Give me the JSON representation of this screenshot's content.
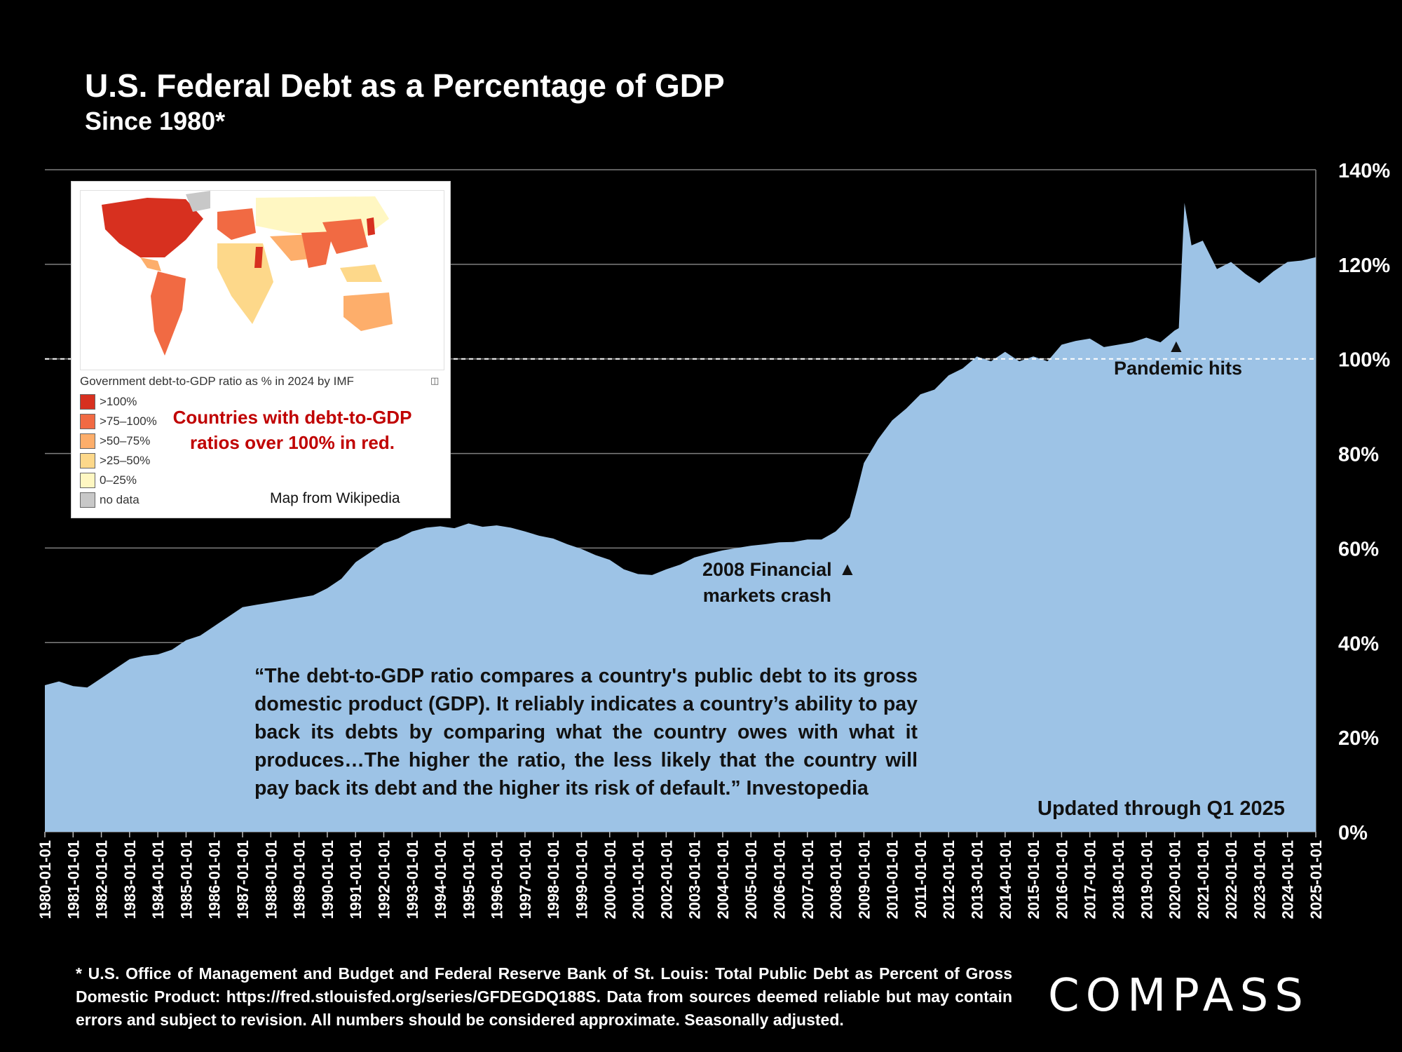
{
  "header": {
    "title": "U.S. Federal Debt as a Percentage of GDP",
    "subtitle": "Since 1980*"
  },
  "inset": {
    "map_caption": "Government debt-to-GDP ratio as % in 2024 by IMF",
    "legend": [
      {
        "label": ">100%",
        "color": "#d7301f"
      },
      {
        "label": ">75–100%",
        "color": "#f16a43"
      },
      {
        "label": ">50–75%",
        "color": "#fdae6b"
      },
      {
        "label": ">25–50%",
        "color": "#fdd88a"
      },
      {
        "label": "0–25%",
        "color": "#fff7c2"
      },
      {
        "label": "no data",
        "color": "#c8c8c8"
      }
    ],
    "note": "Countries with debt-to-GDP ratios over 100% in red.",
    "credit": "Map from Wikipedia"
  },
  "quote": "“The debt-to-GDP ratio compares a country's public debt to its gross domestic product (GDP). It reliably indicates a country’s ability to pay back its debts by comparing what the country owes with what it produces…The higher the ratio, the less likely that the country will pay back its debt and the higher its risk of default.” Investopedia",
  "annotations": {
    "crash_line1": "2008 Financial",
    "crash_line2": "markets crash",
    "pandemic": "Pandemic hits",
    "updated": "Updated through Q1 2025"
  },
  "footnote": "* U.S. Office of Management and Budget and Federal Reserve Bank of St. Louis: Total Public Debt as Percent of Gross Domestic Product: https://fred.stlouisfed.org/series/GFDEGDQ188S. Data from sources deemed reliable but may contain errors and subject to revision. All numbers should be considered approximate. Seasonally adjusted.",
  "brand": {
    "logo": "COMPASS"
  },
  "colors": {
    "fill": "#9dc3e6",
    "background": "#000000",
    "note_red": "#c00000"
  },
  "chart_data": {
    "type": "area",
    "title": "U.S. Federal Debt as a Percentage of GDP",
    "subtitle": "Since 1980*",
    "ylabel": "",
    "xlabel": "",
    "ylim": [
      0,
      140
    ],
    "yticks": [
      "0%",
      "20%",
      "40%",
      "60%",
      "80%",
      "100%",
      "120%",
      "140%"
    ],
    "grid": true,
    "reference_line": {
      "value": 100,
      "style": "dashed"
    },
    "x_labels": [
      "1980-01-01",
      "1981-01-01",
      "1982-01-01",
      "1983-01-01",
      "1984-01-01",
      "1985-01-01",
      "1986-01-01",
      "1987-01-01",
      "1988-01-01",
      "1989-01-01",
      "1990-01-01",
      "1991-01-01",
      "1992-01-01",
      "1993-01-01",
      "1994-01-01",
      "1995-01-01",
      "1996-01-01",
      "1997-01-01",
      "1998-01-01",
      "1999-01-01",
      "2000-01-01",
      "2001-01-01",
      "2002-01-01",
      "2003-01-01",
      "2004-01-01",
      "2005-01-01",
      "2006-01-01",
      "2007-01-01",
      "2008-01-01",
      "2009-01-01",
      "2010-01-01",
      "2011-01-01",
      "2012-01-01",
      "2013-01-01",
      "2014-01-01",
      "2015-01-01",
      "2016-01-01",
      "2017-01-01",
      "2018-01-01",
      "2019-01-01",
      "2020-01-01",
      "2021-01-01",
      "2022-01-01",
      "2023-01-01",
      "2024-01-01",
      "2025-01-01"
    ],
    "series": [
      {
        "name": "Federal debt as % of GDP",
        "points": [
          [
            1980.0,
            31
          ],
          [
            1980.5,
            31.8
          ],
          [
            1981.0,
            30.8
          ],
          [
            1981.5,
            30.5
          ],
          [
            1982.0,
            32.5
          ],
          [
            1982.5,
            34.5
          ],
          [
            1983.0,
            36.5
          ],
          [
            1983.5,
            37.2
          ],
          [
            1984.0,
            37.5
          ],
          [
            1984.5,
            38.5
          ],
          [
            1985.0,
            40.5
          ],
          [
            1985.5,
            41.5
          ],
          [
            1986.0,
            43.5
          ],
          [
            1986.5,
            45.5
          ],
          [
            1987.0,
            47.5
          ],
          [
            1987.5,
            48
          ],
          [
            1988.0,
            48.5
          ],
          [
            1988.5,
            49
          ],
          [
            1989.0,
            49.5
          ],
          [
            1989.5,
            50
          ],
          [
            1990.0,
            51.5
          ],
          [
            1990.5,
            53.5
          ],
          [
            1991.0,
            57
          ],
          [
            1991.5,
            59
          ],
          [
            1992.0,
            61
          ],
          [
            1992.5,
            62
          ],
          [
            1993.0,
            63.5
          ],
          [
            1993.5,
            64.3
          ],
          [
            1994.0,
            64.6
          ],
          [
            1994.5,
            64.2
          ],
          [
            1995.0,
            65.2
          ],
          [
            1995.5,
            64.5
          ],
          [
            1996.0,
            64.8
          ],
          [
            1996.5,
            64.3
          ],
          [
            1997.0,
            63.5
          ],
          [
            1997.5,
            62.6
          ],
          [
            1998.0,
            62
          ],
          [
            1998.5,
            60.8
          ],
          [
            1999.0,
            59.8
          ],
          [
            1999.5,
            58.5
          ],
          [
            2000.0,
            57.5
          ],
          [
            2000.5,
            55.5
          ],
          [
            2001.0,
            54.5
          ],
          [
            2001.5,
            54.3
          ],
          [
            2002.0,
            55.5
          ],
          [
            2002.5,
            56.5
          ],
          [
            2003.0,
            58
          ],
          [
            2003.5,
            58.8
          ],
          [
            2004.0,
            59.5
          ],
          [
            2004.5,
            60
          ],
          [
            2005.0,
            60.5
          ],
          [
            2005.5,
            60.8
          ],
          [
            2006.0,
            61.2
          ],
          [
            2006.5,
            61.3
          ],
          [
            2007.0,
            61.8
          ],
          [
            2007.5,
            61.8
          ],
          [
            2008.0,
            63.5
          ],
          [
            2008.5,
            66.5
          ],
          [
            2008.75,
            72
          ],
          [
            2009.0,
            78
          ],
          [
            2009.5,
            83
          ],
          [
            2010.0,
            87
          ],
          [
            2010.5,
            89.5
          ],
          [
            2011.0,
            92.5
          ],
          [
            2011.5,
            93.5
          ],
          [
            2012.0,
            96.5
          ],
          [
            2012.5,
            98
          ],
          [
            2013.0,
            100.5
          ],
          [
            2013.5,
            99.5
          ],
          [
            2014.0,
            101.5
          ],
          [
            2014.5,
            99.5
          ],
          [
            2015.0,
            100.5
          ],
          [
            2015.5,
            99.5
          ],
          [
            2016.0,
            103
          ],
          [
            2016.5,
            103.8
          ],
          [
            2017.0,
            104.3
          ],
          [
            2017.5,
            102.5
          ],
          [
            2018.0,
            103
          ],
          [
            2018.5,
            103.5
          ],
          [
            2019.0,
            104.5
          ],
          [
            2019.5,
            103.5
          ],
          [
            2020.0,
            106
          ],
          [
            2020.15,
            106.5
          ],
          [
            2020.35,
            133
          ],
          [
            2020.6,
            124
          ],
          [
            2021.0,
            125
          ],
          [
            2021.5,
            119
          ],
          [
            2022.0,
            120.5
          ],
          [
            2022.5,
            118
          ],
          [
            2023.0,
            116
          ],
          [
            2023.5,
            118.5
          ],
          [
            2024.0,
            120.5
          ],
          [
            2024.5,
            120.8
          ],
          [
            2025.0,
            121.5
          ]
        ]
      }
    ]
  }
}
